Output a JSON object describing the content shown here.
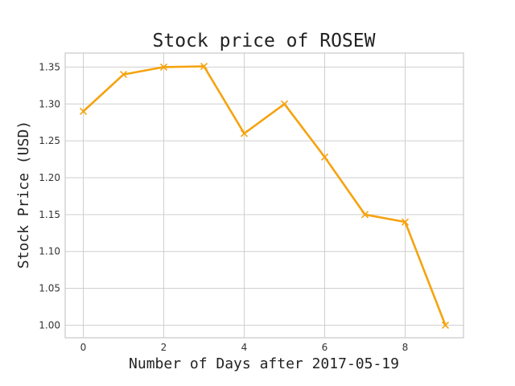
{
  "chart_data": {
    "type": "line",
    "title": "Stock price of ROSEW",
    "xlabel": "Number of Days after 2017-05-19",
    "ylabel": "Stock Price (USD)",
    "xlim": [
      -0.45,
      9.45
    ],
    "ylim": [
      0.983,
      1.369
    ],
    "x_ticks": [
      0,
      2,
      4,
      6,
      8
    ],
    "x_tick_labels": [
      "0",
      "2",
      "4",
      "6",
      "8"
    ],
    "y_ticks": [
      1.0,
      1.05,
      1.1,
      1.15,
      1.2,
      1.25,
      1.3,
      1.35
    ],
    "y_tick_labels": [
      "1.00",
      "1.05",
      "1.10",
      "1.15",
      "1.20",
      "1.25",
      "1.30",
      "1.35"
    ],
    "grid": true,
    "series": [
      {
        "color": "#f5a30f",
        "marker": "x",
        "x": [
          0,
          1,
          2,
          3,
          4,
          5,
          6,
          7,
          8,
          9
        ],
        "y": [
          1.29,
          1.34,
          1.35,
          1.351,
          1.26,
          1.3,
          1.228,
          1.15,
          1.14,
          1.0
        ]
      }
    ]
  }
}
